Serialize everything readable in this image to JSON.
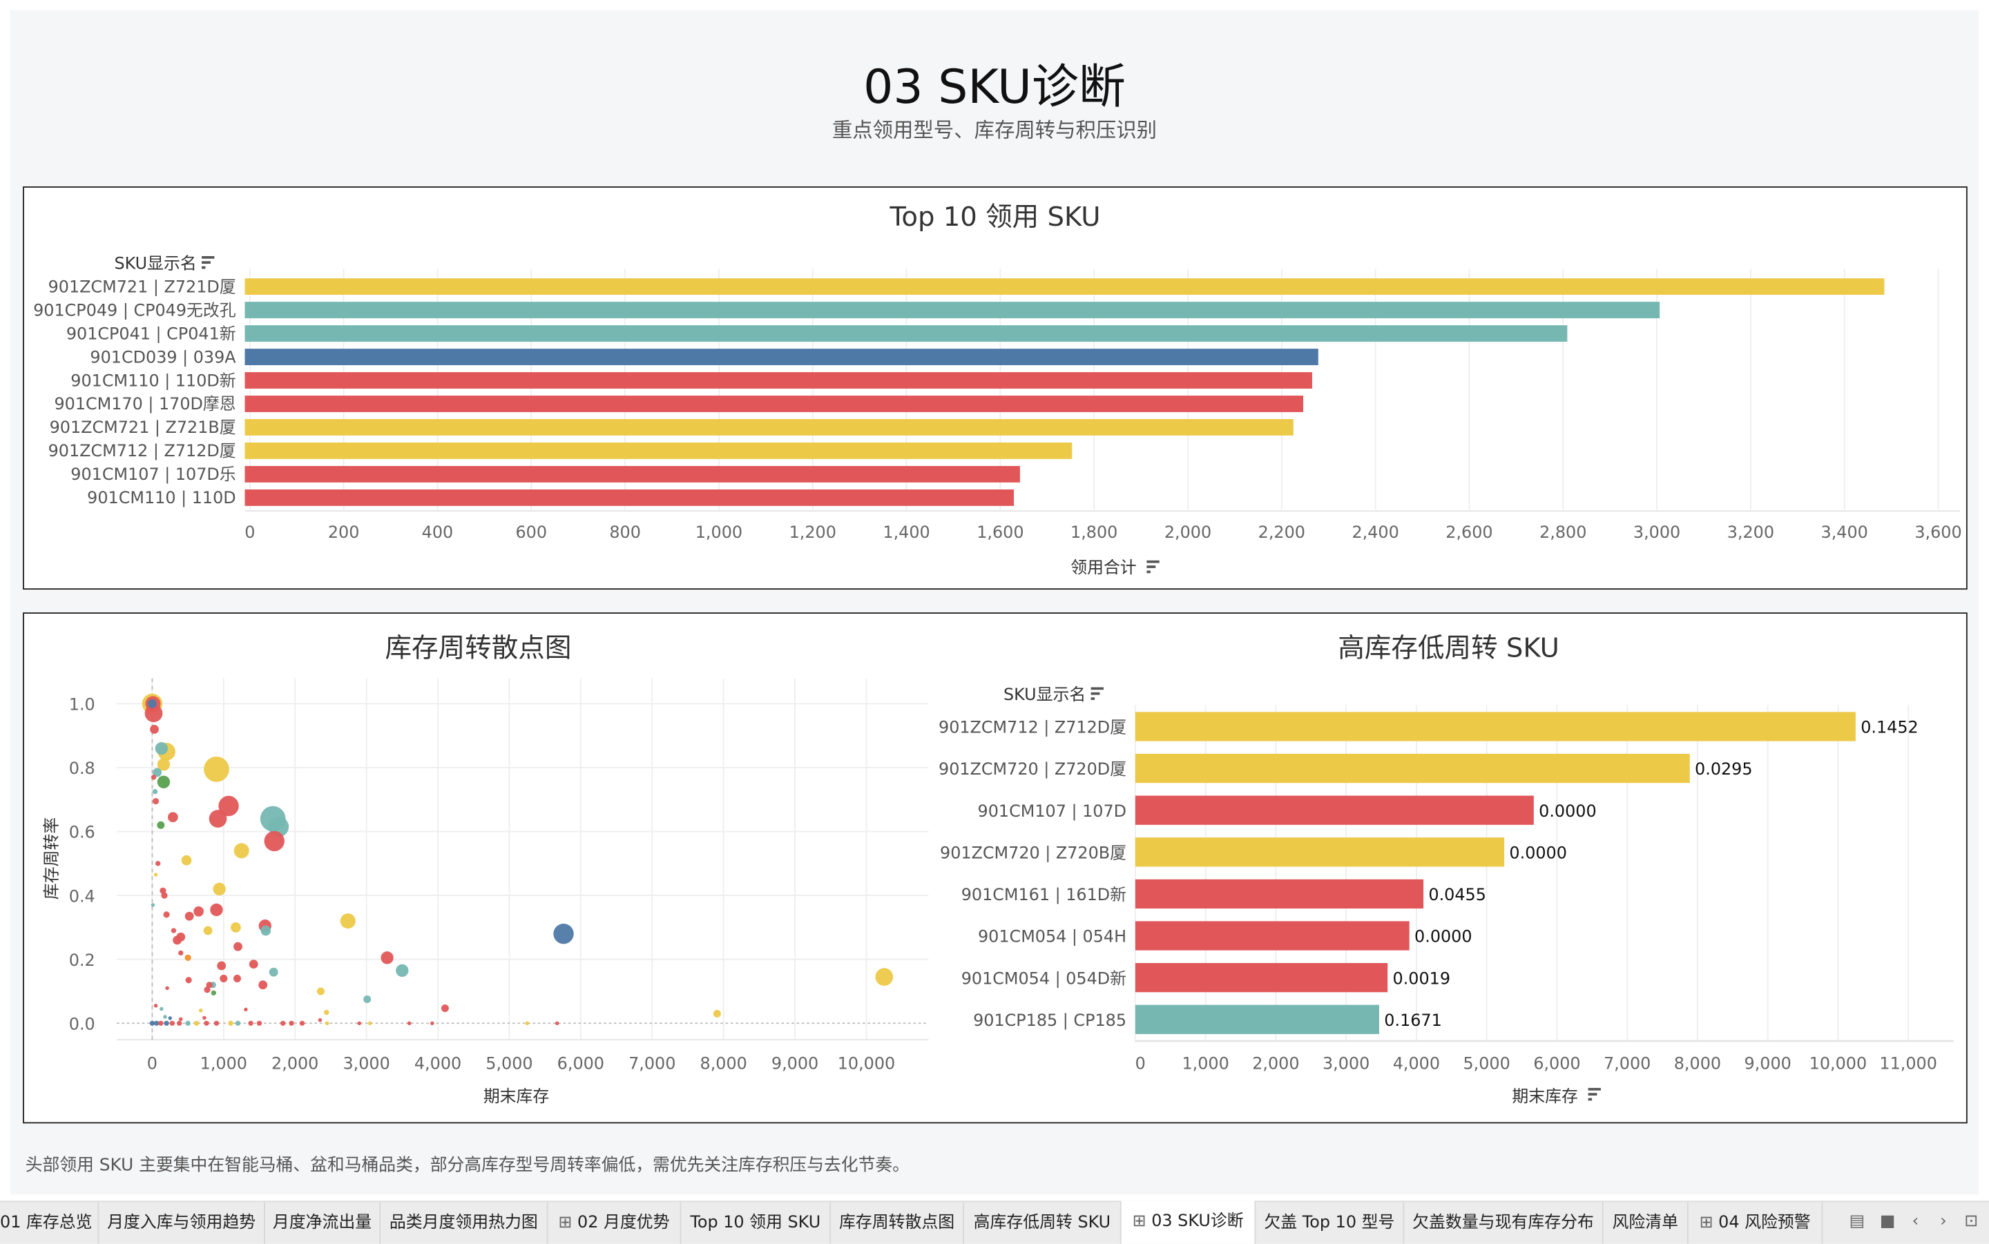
{
  "header": {
    "title": "03 SKU诊断",
    "subtitle": "重点领用型号、库存周转与积压识别"
  },
  "colors": {
    "yellow": "#EDC948",
    "teal": "#76B7B2",
    "blue": "#4E79A7",
    "red": "#E15759",
    "green": "#59A14F",
    "orange": "#F28E2B"
  },
  "chart_data": [
    {
      "type": "bar",
      "title": "Top 10 领用 SKU",
      "ylabel": "SKU显示名",
      "xlabel": "领用合计",
      "xlim": [
        0,
        3600
      ],
      "grid": true,
      "categories": [
        "901ZCM721 | Z721D厦",
        "901CP049 | CP049无改孔",
        "901CP041 | CP041新",
        "901CD039 | 039A",
        "901CM110 | 110D新",
        "901CM170 | 170D摩恩",
        "901ZCM721 | Z721B厦",
        "901ZCM712 | Z712D厦",
        "901CM107 | 107D乐",
        "901CM110 | 110D"
      ],
      "values": [
        3485,
        3006,
        2809,
        2278,
        2265,
        2246,
        2225,
        1753,
        1642,
        1629
      ],
      "colors": [
        "yellow",
        "teal",
        "teal",
        "blue",
        "red",
        "red",
        "yellow",
        "yellow",
        "red",
        "red"
      ],
      "ticks": [
        "0",
        "200",
        "400",
        "600",
        "800",
        "1,000",
        "1,200",
        "1,400",
        "1,600",
        "1,800",
        "2,000",
        "2,200",
        "2,400",
        "2,600",
        "2,800",
        "3,000",
        "3,200",
        "3,400",
        "3,600"
      ]
    },
    {
      "type": "scatter",
      "title": "库存周转散点图",
      "xlabel": "期末库存",
      "ylabel": "库存周转率",
      "xlim": [
        -700,
        11000
      ],
      "ylim": [
        -0.05,
        1.06
      ],
      "grid": true,
      "xticks": [
        "0",
        "1,000",
        "2,000",
        "3,000",
        "4,000",
        "5,000",
        "6,000",
        "7,000",
        "8,000",
        "9,000",
        "10,000"
      ],
      "yticks": [
        "0.0",
        "0.2",
        "0.4",
        "0.6",
        "0.8",
        "1.0"
      ],
      "points": [
        {
          "x": 0,
          "y": 1.0,
          "size": 8,
          "color": "yellow"
        },
        {
          "x": 20,
          "y": 0.97,
          "size": 7,
          "color": "red"
        },
        {
          "x": 10,
          "y": 1.0,
          "size": 6,
          "color": "red"
        },
        {
          "x": 0,
          "y": 1.0,
          "size": 3.5,
          "color": "blue"
        },
        {
          "x": 30,
          "y": 0.92,
          "size": 3.5,
          "color": "red"
        },
        {
          "x": 200,
          "y": 0.85,
          "size": 7,
          "color": "yellow"
        },
        {
          "x": 130,
          "y": 0.86,
          "size": 5,
          "color": "teal"
        },
        {
          "x": 160,
          "y": 0.81,
          "size": 5,
          "color": "yellow"
        },
        {
          "x": 900,
          "y": 0.795,
          "size": 10,
          "color": "yellow"
        },
        {
          "x": 70,
          "y": 0.785,
          "size": 3.5,
          "color": "teal"
        },
        {
          "x": 160,
          "y": 0.755,
          "size": 5,
          "color": "green"
        },
        {
          "x": 20,
          "y": 0.77,
          "size": 2,
          "color": "red"
        },
        {
          "x": 40,
          "y": 0.725,
          "size": 2,
          "color": "teal"
        },
        {
          "x": 50,
          "y": 0.695,
          "size": 2.5,
          "color": "red"
        },
        {
          "x": 1070,
          "y": 0.68,
          "size": 8,
          "color": "red"
        },
        {
          "x": 920,
          "y": 0.64,
          "size": 7,
          "color": "red"
        },
        {
          "x": 1690,
          "y": 0.64,
          "size": 10,
          "color": "teal"
        },
        {
          "x": 1770,
          "y": 0.615,
          "size": 8,
          "color": "teal"
        },
        {
          "x": 1710,
          "y": 0.57,
          "size": 8,
          "color": "red"
        },
        {
          "x": 290,
          "y": 0.645,
          "size": 4,
          "color": "red"
        },
        {
          "x": 120,
          "y": 0.62,
          "size": 3,
          "color": "green"
        },
        {
          "x": 1250,
          "y": 0.54,
          "size": 6,
          "color": "yellow"
        },
        {
          "x": 480,
          "y": 0.51,
          "size": 4,
          "color": "yellow"
        },
        {
          "x": 80,
          "y": 0.5,
          "size": 2,
          "color": "red"
        },
        {
          "x": 50,
          "y": 0.465,
          "size": 1.5,
          "color": "yellow"
        },
        {
          "x": 940,
          "y": 0.42,
          "size": 5,
          "color": "yellow"
        },
        {
          "x": 150,
          "y": 0.415,
          "size": 2.5,
          "color": "red"
        },
        {
          "x": 170,
          "y": 0.4,
          "size": 2.5,
          "color": "red"
        },
        {
          "x": 10,
          "y": 0.37,
          "size": 1.5,
          "color": "teal"
        },
        {
          "x": 900,
          "y": 0.355,
          "size": 5,
          "color": "red"
        },
        {
          "x": 650,
          "y": 0.35,
          "size": 4,
          "color": "red"
        },
        {
          "x": 520,
          "y": 0.335,
          "size": 3.5,
          "color": "red"
        },
        {
          "x": 200,
          "y": 0.34,
          "size": 2.5,
          "color": "red"
        },
        {
          "x": 2740,
          "y": 0.32,
          "size": 6,
          "color": "yellow"
        },
        {
          "x": 1580,
          "y": 0.305,
          "size": 5,
          "color": "red"
        },
        {
          "x": 1590,
          "y": 0.29,
          "size": 4,
          "color": "teal"
        },
        {
          "x": 1170,
          "y": 0.3,
          "size": 4,
          "color": "yellow"
        },
        {
          "x": 780,
          "y": 0.29,
          "size": 3.5,
          "color": "yellow"
        },
        {
          "x": 5760,
          "y": 0.28,
          "size": 8,
          "color": "blue"
        },
        {
          "x": 400,
          "y": 0.27,
          "size": 3.5,
          "color": "red"
        },
        {
          "x": 350,
          "y": 0.26,
          "size": 3.5,
          "color": "red"
        },
        {
          "x": 300,
          "y": 0.29,
          "size": 2,
          "color": "red"
        },
        {
          "x": 1200,
          "y": 0.24,
          "size": 3.5,
          "color": "red"
        },
        {
          "x": 400,
          "y": 0.22,
          "size": 2,
          "color": "red"
        },
        {
          "x": 500,
          "y": 0.205,
          "size": 2.5,
          "color": "orange"
        },
        {
          "x": 3290,
          "y": 0.205,
          "size": 5,
          "color": "red"
        },
        {
          "x": 970,
          "y": 0.18,
          "size": 3.5,
          "color": "red"
        },
        {
          "x": 1420,
          "y": 0.185,
          "size": 3.5,
          "color": "red"
        },
        {
          "x": 3500,
          "y": 0.165,
          "size": 5,
          "color": "teal"
        },
        {
          "x": 1700,
          "y": 0.16,
          "size": 3.5,
          "color": "teal"
        },
        {
          "x": 10250,
          "y": 0.145,
          "size": 7,
          "color": "yellow"
        },
        {
          "x": 1000,
          "y": 0.14,
          "size": 3,
          "color": "red"
        },
        {
          "x": 1190,
          "y": 0.14,
          "size": 3,
          "color": "red"
        },
        {
          "x": 510,
          "y": 0.135,
          "size": 2.5,
          "color": "red"
        },
        {
          "x": 1550,
          "y": 0.12,
          "size": 3.5,
          "color": "red"
        },
        {
          "x": 850,
          "y": 0.12,
          "size": 2.5,
          "color": "teal"
        },
        {
          "x": 800,
          "y": 0.12,
          "size": 2.5,
          "color": "red"
        },
        {
          "x": 770,
          "y": 0.105,
          "size": 2.5,
          "color": "red"
        },
        {
          "x": 860,
          "y": 0.095,
          "size": 2,
          "color": "green"
        },
        {
          "x": 2360,
          "y": 0.1,
          "size": 3,
          "color": "yellow"
        },
        {
          "x": 210,
          "y": 0.11,
          "size": 1.5,
          "color": "red"
        },
        {
          "x": 3010,
          "y": 0.075,
          "size": 3,
          "color": "teal"
        },
        {
          "x": 4100,
          "y": 0.047,
          "size": 3,
          "color": "red"
        },
        {
          "x": 2440,
          "y": 0.034,
          "size": 2,
          "color": "yellow"
        },
        {
          "x": 7910,
          "y": 0.03,
          "size": 3,
          "color": "yellow"
        },
        {
          "x": 50,
          "y": 0.055,
          "size": 1.5,
          "color": "red"
        },
        {
          "x": 130,
          "y": 0.045,
          "size": 1.5,
          "color": "teal"
        },
        {
          "x": 1310,
          "y": 0.043,
          "size": 1.5,
          "color": "red"
        },
        {
          "x": 680,
          "y": 0.04,
          "size": 1.5,
          "color": "yellow"
        },
        {
          "x": 180,
          "y": 0.02,
          "size": 1.5,
          "color": "teal"
        },
        {
          "x": 250,
          "y": 0.016,
          "size": 1.5,
          "color": "blue"
        },
        {
          "x": 400,
          "y": 0.013,
          "size": 1.5,
          "color": "red"
        },
        {
          "x": 730,
          "y": 0.017,
          "size": 1.5,
          "color": "red"
        },
        {
          "x": 0,
          "y": 0,
          "size": 2,
          "color": "blue"
        },
        {
          "x": 60,
          "y": 0,
          "size": 2,
          "color": "blue"
        },
        {
          "x": 120,
          "y": 0,
          "size": 2,
          "color": "red"
        },
        {
          "x": 200,
          "y": 0,
          "size": 2,
          "color": "blue"
        },
        {
          "x": 280,
          "y": 0,
          "size": 2,
          "color": "red"
        },
        {
          "x": 380,
          "y": 0,
          "size": 2,
          "color": "red"
        },
        {
          "x": 500,
          "y": 0,
          "size": 2,
          "color": "teal"
        },
        {
          "x": 620,
          "y": 0,
          "size": 2,
          "color": "yellow"
        },
        {
          "x": 760,
          "y": 0,
          "size": 2,
          "color": "red"
        },
        {
          "x": 900,
          "y": 0,
          "size": 2,
          "color": "red"
        },
        {
          "x": 1100,
          "y": 0,
          "size": 2,
          "color": "yellow"
        },
        {
          "x": 1200,
          "y": 0,
          "size": 2,
          "color": "teal"
        },
        {
          "x": 1380,
          "y": 0,
          "size": 2,
          "color": "red"
        },
        {
          "x": 1500,
          "y": 0,
          "size": 2,
          "color": "red"
        },
        {
          "x": 1830,
          "y": 0,
          "size": 2,
          "color": "red"
        },
        {
          "x": 1950,
          "y": 0,
          "size": 2,
          "color": "red"
        },
        {
          "x": 2100,
          "y": 0,
          "size": 2,
          "color": "red"
        },
        {
          "x": 2350,
          "y": 0.01,
          "size": 1.5,
          "color": "red"
        },
        {
          "x": 2450,
          "y": 0,
          "size": 1.5,
          "color": "yellow"
        },
        {
          "x": 2900,
          "y": 0,
          "size": 1.5,
          "color": "red"
        },
        {
          "x": 3050,
          "y": 0,
          "size": 1.5,
          "color": "yellow"
        },
        {
          "x": 3600,
          "y": 0,
          "size": 1.5,
          "color": "red"
        },
        {
          "x": 3920,
          "y": 0,
          "size": 1.5,
          "color": "red"
        },
        {
          "x": 5250,
          "y": 0,
          "size": 1.5,
          "color": "yellow"
        },
        {
          "x": 5670,
          "y": 0,
          "size": 1.5,
          "color": "red"
        }
      ]
    },
    {
      "type": "bar",
      "title": "高库存低周转 SKU",
      "ylabel": "SKU显示名",
      "xlabel": "期末库存",
      "xlim": [
        0,
        11000
      ],
      "grid": true,
      "categories": [
        "901ZCM712 | Z712D厦",
        "901ZCM720 | Z720D厦",
        "901CM107 | 107D",
        "901ZCM720 | Z720B厦",
        "901CM161 | 161D新",
        "901CM054 | 054H",
        "901CM054 | 054D新",
        "901CP185 | CP185"
      ],
      "values": [
        10250,
        7890,
        5670,
        5250,
        4100,
        3900,
        3590,
        3470
      ],
      "labels": [
        "0.1452",
        "0.0295",
        "0.0000",
        "0.0000",
        "0.0455",
        "0.0000",
        "0.0019",
        "0.1671"
      ],
      "colors": [
        "yellow",
        "yellow",
        "red",
        "yellow",
        "red",
        "red",
        "red",
        "teal"
      ],
      "ticks": [
        "0",
        "1,000",
        "2,000",
        "3,000",
        "4,000",
        "5,000",
        "6,000",
        "7,000",
        "8,000",
        "9,000",
        "10,000",
        "11,000"
      ]
    }
  ],
  "note": "头部领用 SKU 主要集中在智能马桶、盆和马桶品类，部分高库存型号周转率偏低，需优先关注库存积压与去化节奏。",
  "tabs": [
    {
      "label": "01 库存总览",
      "icon": ""
    },
    {
      "label": "月度入库与领用趋势",
      "icon": ""
    },
    {
      "label": "月度净流出量",
      "icon": ""
    },
    {
      "label": "品类月度领用热力图",
      "icon": ""
    },
    {
      "label": "02 月度优势",
      "icon": "dashboard-icon"
    },
    {
      "label": "Top 10 领用 SKU",
      "icon": ""
    },
    {
      "label": "库存周转散点图",
      "icon": ""
    },
    {
      "label": "高库存低周转 SKU",
      "icon": ""
    },
    {
      "label": "03 SKU诊断",
      "icon": "dashboard-icon",
      "active": true
    },
    {
      "label": "欠盖 Top 10 型号",
      "icon": ""
    },
    {
      "label": "欠盖数量与现有库存分布",
      "icon": ""
    },
    {
      "label": "风险清单",
      "icon": ""
    },
    {
      "label": "04 风险预警",
      "icon": "dashboard-icon"
    }
  ]
}
